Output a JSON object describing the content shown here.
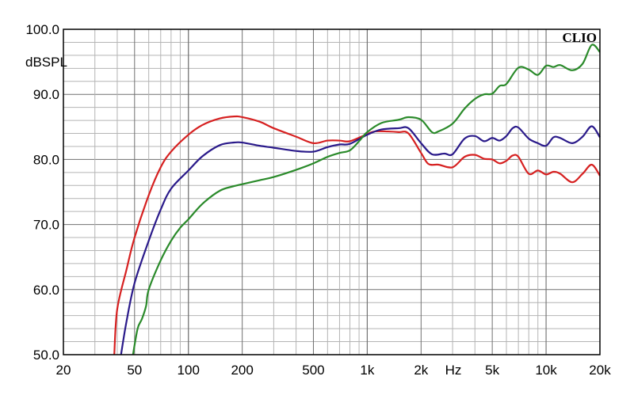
{
  "chart_data": {
    "type": "line",
    "title": "",
    "brand": "CLIO",
    "ylabel": "dBSPL",
    "xlabel": "Hz",
    "x_scale": "log",
    "xlim": [
      20,
      20000
    ],
    "ylim": [
      50,
      100
    ],
    "grid": true,
    "y_ticks": [
      {
        "value": 100,
        "label": "100.0"
      },
      {
        "value": 90,
        "label": "90.0"
      },
      {
        "value": 80,
        "label": "80.0"
      },
      {
        "value": 70,
        "label": "70.0"
      },
      {
        "value": 60,
        "label": "60.0"
      },
      {
        "value": 50,
        "label": "50.0"
      }
    ],
    "x_ticks": [
      {
        "value": 20,
        "label": "20"
      },
      {
        "value": 50,
        "label": "50"
      },
      {
        "value": 100,
        "label": "100"
      },
      {
        "value": 200,
        "label": "200"
      },
      {
        "value": 500,
        "label": "500"
      },
      {
        "value": 1000,
        "label": "1k"
      },
      {
        "value": 2000,
        "label": "2k"
      },
      {
        "value": 5000,
        "label": "5k"
      },
      {
        "value": 10000,
        "label": "10k"
      },
      {
        "value": 20000,
        "label": "20k"
      }
    ],
    "series": [
      {
        "color": "#d62020",
        "x": [
          38.5,
          40,
          45,
          50,
          60,
          70,
          80,
          100,
          120,
          150,
          180,
          200,
          250,
          300,
          400,
          500,
          600,
          700,
          800,
          1000,
          1100,
          1300,
          1500,
          1700,
          2000,
          2200,
          2500,
          3000,
          3500,
          4000,
          4500,
          5000,
          5500,
          6000,
          6500,
          7000,
          8000,
          9000,
          10000,
          11000,
          12000,
          14000,
          16000,
          18000,
          20000
        ],
        "y": [
          50,
          57,
          63,
          68,
          74.5,
          78.8,
          81.2,
          83.8,
          85.3,
          86.3,
          86.6,
          86.5,
          85.8,
          84.8,
          83.5,
          82.5,
          82.9,
          82.9,
          82.8,
          83.9,
          84.3,
          84.3,
          84.2,
          84,
          81,
          79.3,
          79.2,
          78.8,
          80.4,
          80.7,
          80.1,
          80,
          79.4,
          79.8,
          80.6,
          80.4,
          77.8,
          78.3,
          77.7,
          78.1,
          77.8,
          76.5,
          77.8,
          79.2,
          77.5
        ]
      },
      {
        "color": "#2a1a8a",
        "x": [
          42,
          45,
          50,
          60,
          70,
          80,
          100,
          120,
          150,
          180,
          200,
          250,
          300,
          400,
          500,
          600,
          700,
          800,
          1000,
          1200,
          1500,
          1700,
          2000,
          2300,
          2700,
          3000,
          3500,
          4000,
          4500,
          5000,
          5500,
          6000,
          6500,
          7000,
          8000,
          9000,
          10000,
          11000,
          12000,
          14000,
          16000,
          18000,
          20000
        ],
        "y": [
          50,
          55,
          61,
          67.5,
          72.3,
          75.5,
          78.3,
          80.5,
          82.2,
          82.6,
          82.6,
          82.1,
          81.8,
          81.3,
          81.2,
          81.9,
          82.3,
          82.4,
          83.8,
          84.6,
          84.8,
          84.8,
          82.5,
          80.8,
          80.9,
          80.8,
          83.2,
          83.6,
          82.8,
          83.3,
          82.9,
          83.6,
          84.8,
          84.9,
          83.2,
          82.5,
          82.1,
          83.4,
          83.3,
          82.5,
          83.5,
          85.1,
          83.4
        ]
      },
      {
        "color": "#2a8a2a",
        "x": [
          49,
          52,
          55,
          58,
          60,
          70,
          80,
          90,
          100,
          120,
          150,
          180,
          200,
          250,
          300,
          400,
          500,
          600,
          700,
          800,
          900,
          1000,
          1200,
          1500,
          1700,
          2000,
          2300,
          2500,
          3000,
          3500,
          4000,
          4500,
          5000,
          5500,
          6000,
          7000,
          8000,
          9000,
          10000,
          11000,
          12000,
          14000,
          16000,
          18000,
          20000
        ],
        "y": [
          50,
          54,
          55.5,
          57.5,
          60,
          64.5,
          67.5,
          69.5,
          70.8,
          73.2,
          75.2,
          75.9,
          76.2,
          76.8,
          77.3,
          78.4,
          79.4,
          80.4,
          81,
          81.4,
          82.8,
          84.2,
          85.6,
          86.1,
          86.5,
          86.1,
          84.2,
          84.3,
          85.5,
          87.8,
          89.3,
          90,
          90.1,
          91.3,
          91.6,
          94.1,
          93.8,
          93,
          94.4,
          94.2,
          94.5,
          93.7,
          94.7,
          97.6,
          96.5
        ]
      }
    ]
  }
}
